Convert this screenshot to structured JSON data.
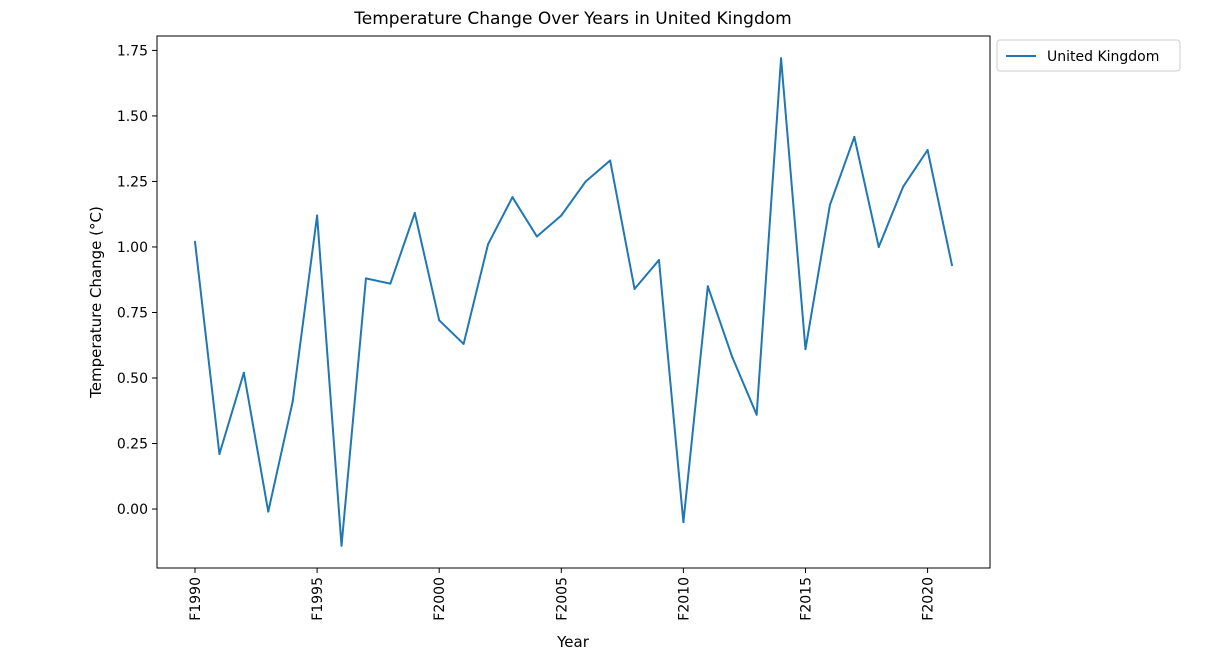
{
  "chart_data": {
    "type": "line",
    "title": "Temperature Change Over Years in United Kingdom",
    "xlabel": "Year",
    "ylabel": "Temperature Change (°C)",
    "x": [
      "F1990",
      "F1991",
      "F1992",
      "F1993",
      "F1994",
      "F1995",
      "F1996",
      "F1997",
      "F1998",
      "F1999",
      "F2000",
      "F2001",
      "F2002",
      "F2003",
      "F2004",
      "F2005",
      "F2006",
      "F2007",
      "F2008",
      "F2009",
      "F2010",
      "F2011",
      "F2012",
      "F2013",
      "F2014",
      "F2015",
      "F2016",
      "F2017",
      "F2018",
      "F2019",
      "F2020",
      "F2021"
    ],
    "x_ticks": [
      "F1990",
      "F1995",
      "F2000",
      "F2005",
      "F2010",
      "F2015",
      "F2020"
    ],
    "series": [
      {
        "name": "United Kingdom",
        "color": "#1f77b4",
        "values": [
          1.02,
          0.21,
          0.52,
          -0.01,
          0.41,
          1.12,
          -0.14,
          0.88,
          0.86,
          1.13,
          0.72,
          0.63,
          1.01,
          1.19,
          1.04,
          1.12,
          1.25,
          1.33,
          0.84,
          0.95,
          -0.05,
          0.85,
          0.58,
          0.36,
          1.72,
          0.61,
          1.16,
          1.42,
          1.0,
          1.23,
          1.37,
          0.93
        ]
      }
    ],
    "y_ticks": [
      "0.00",
      "0.25",
      "0.50",
      "0.75",
      "1.00",
      "1.25",
      "1.50",
      "1.75"
    ],
    "ylim": [
      -0.225,
      1.805
    ],
    "legend_position": "outside-top-right",
    "grid": false
  }
}
